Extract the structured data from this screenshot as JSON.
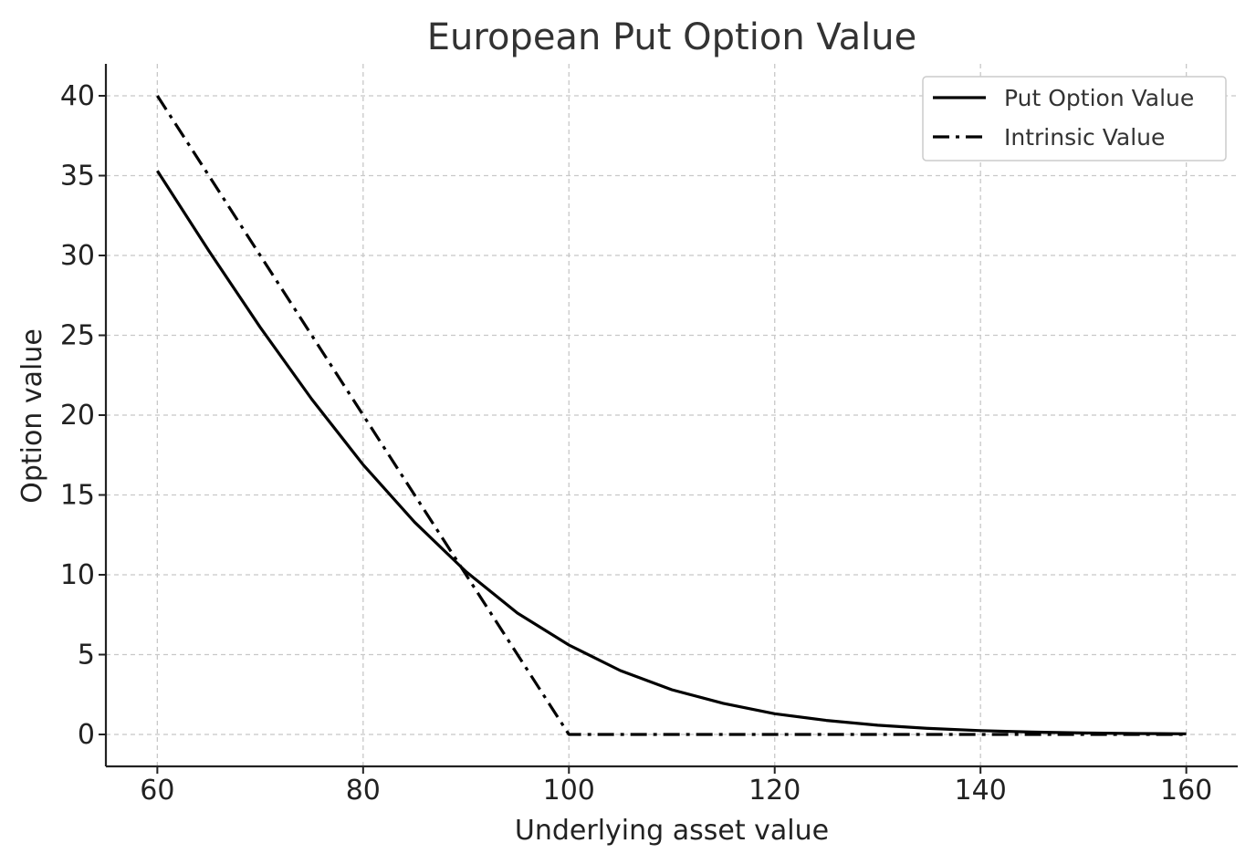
{
  "chart_data": {
    "type": "line",
    "title": "European Put Option Value",
    "xlabel": "Underlying asset value",
    "ylabel": "Option value",
    "xlim": [
      55,
      165
    ],
    "ylim": [
      -2,
      42
    ],
    "xticks": [
      60,
      80,
      100,
      120,
      140,
      160
    ],
    "yticks": [
      0,
      5,
      10,
      15,
      20,
      25,
      30,
      35,
      40
    ],
    "grid": true,
    "legend_position": "top-right",
    "series": [
      {
        "name": "Put Option Value",
        "style": "solid",
        "color": "#000000",
        "x": [
          60,
          65,
          70,
          75,
          80,
          85,
          90,
          95,
          100,
          105,
          110,
          115,
          120,
          125,
          130,
          135,
          140,
          145,
          150,
          155,
          160
        ],
        "y": [
          35.3,
          30.3,
          25.5,
          21.0,
          16.9,
          13.3,
          10.2,
          7.6,
          5.6,
          4.0,
          2.8,
          1.95,
          1.3,
          0.88,
          0.58,
          0.38,
          0.24,
          0.15,
          0.1,
          0.06,
          0.04
        ]
      },
      {
        "name": "Intrinsic Value",
        "style": "dashdot",
        "color": "#000000",
        "x": [
          60,
          100,
          160
        ],
        "y": [
          40,
          0,
          0
        ]
      }
    ]
  }
}
